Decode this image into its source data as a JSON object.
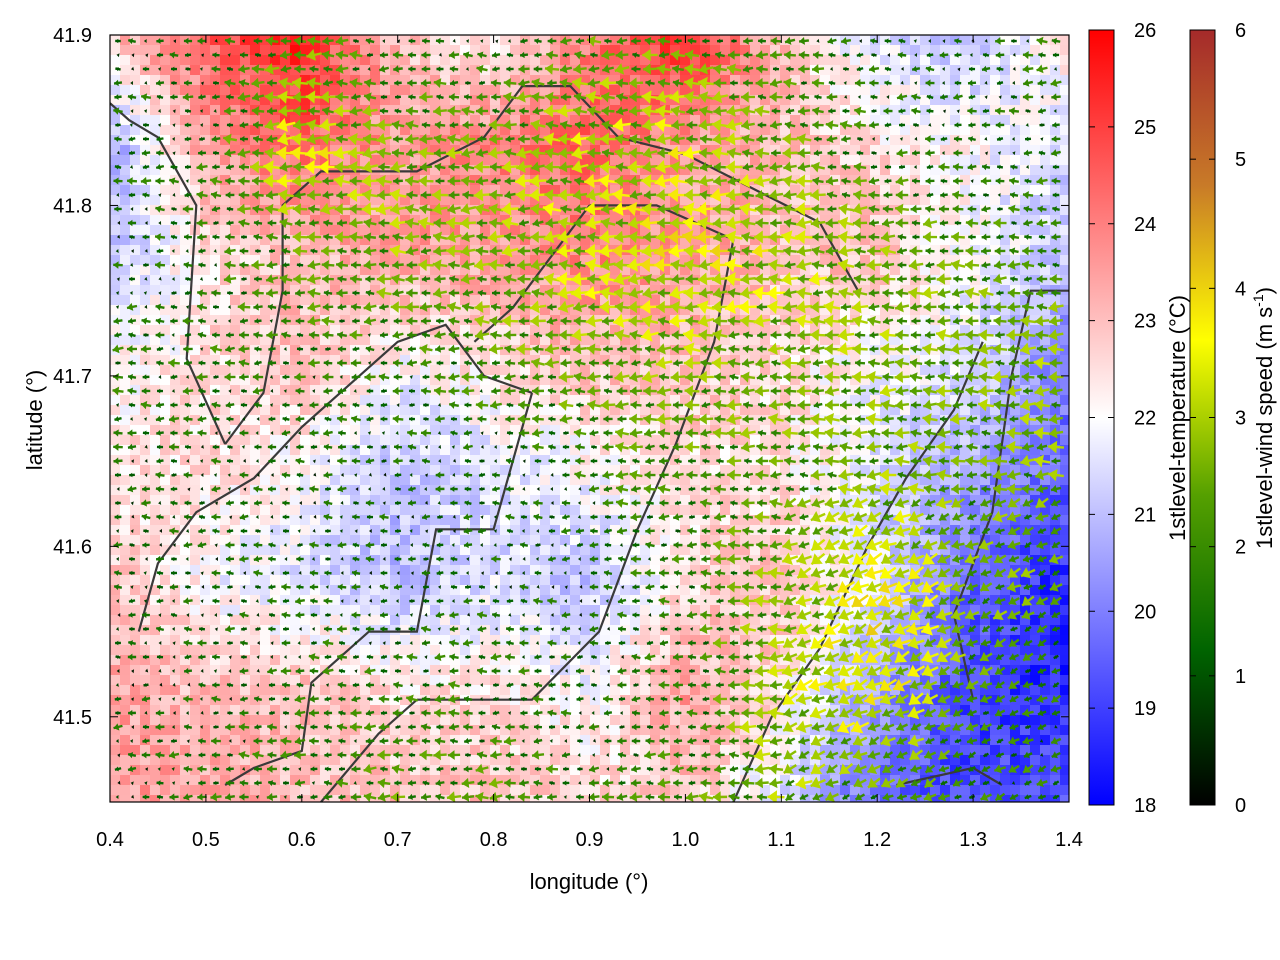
{
  "chart_data": {
    "type": "heatmap",
    "title": "",
    "xlabel": "longitude (°)",
    "ylabel": "latitude (°)",
    "xlim": [
      0.4,
      1.4
    ],
    "ylim": [
      41.45,
      41.9
    ],
    "x_ticks": [
      "0.4",
      "0.5",
      "0.6",
      "0.7",
      "0.8",
      "0.9",
      "1.0",
      "1.1",
      "1.2",
      "1.3",
      "1.4"
    ],
    "y_ticks": [
      "41.5",
      "41.6",
      "41.7",
      "41.8",
      "41.9"
    ],
    "grid": false,
    "temperature_colorbar": {
      "label": "1stlevel-temperature (°C)",
      "range": [
        18,
        26
      ],
      "ticks": [
        "18",
        "19",
        "20",
        "21",
        "22",
        "23",
        "24",
        "25",
        "26"
      ],
      "colors": [
        "#0000ff",
        "#ffffff",
        "#ff0000"
      ]
    },
    "wind_colorbar": {
      "label_main": "1stlevel-wind speed (m s",
      "label_sup": "-1",
      "label_end": ")",
      "range": [
        0,
        6
      ],
      "ticks": [
        "0",
        "1",
        "2",
        "3",
        "4",
        "5",
        "6"
      ],
      "colors": [
        "#000000",
        "#006400",
        "#55a000",
        "#ffff00",
        "#c87a28",
        "#a52a2a"
      ]
    },
    "temperature_field": [
      [
        23.0,
        24.5,
        25.5,
        23.0,
        22.0,
        24.0,
        25.5,
        23.0,
        21.5,
        21.0,
        22.5
      ],
      [
        20.5,
        23.5,
        24.5,
        23.5,
        24.0,
        24.5,
        23.5,
        23.0,
        22.5,
        22.0,
        21.5
      ],
      [
        21.0,
        22.5,
        23.0,
        23.5,
        23.5,
        24.0,
        23.5,
        23.0,
        23.0,
        22.0,
        21.0
      ],
      [
        22.0,
        22.5,
        23.0,
        22.0,
        22.5,
        23.0,
        23.0,
        22.5,
        22.0,
        21.5,
        20.0
      ],
      [
        22.5,
        22.5,
        22.0,
        21.0,
        21.5,
        22.0,
        22.5,
        22.5,
        21.5,
        20.5,
        19.5
      ],
      [
        23.0,
        22.0,
        21.5,
        21.0,
        21.5,
        21.0,
        22.5,
        23.0,
        21.5,
        19.5,
        18.5
      ],
      [
        23.5,
        23.0,
        23.0,
        22.5,
        22.5,
        22.0,
        23.5,
        22.5,
        20.5,
        19.0,
        18.5
      ],
      [
        23.5,
        23.5,
        23.0,
        23.0,
        23.0,
        22.5,
        23.0,
        21.5,
        19.5,
        19.0,
        19.5
      ]
    ],
    "wind_speed_field": [
      [
        1.0,
        1.0,
        2.0,
        1.0,
        1.0,
        2.0,
        2.0,
        1.5,
        1.0,
        1.0,
        1.5
      ],
      [
        1.0,
        1.5,
        3.5,
        2.5,
        2.5,
        3.0,
        3.0,
        2.5,
        1.5,
        1.0,
        1.5
      ],
      [
        1.0,
        1.5,
        2.0,
        2.5,
        2.5,
        3.0,
        3.5,
        3.0,
        2.5,
        2.0,
        2.0
      ],
      [
        1.5,
        1.5,
        1.5,
        1.5,
        2.0,
        2.5,
        2.5,
        2.5,
        2.5,
        2.5,
        2.5
      ],
      [
        1.0,
        1.0,
        1.0,
        1.0,
        1.0,
        1.5,
        2.0,
        2.0,
        2.5,
        2.0,
        2.5
      ],
      [
        1.0,
        1.0,
        1.0,
        1.0,
        1.0,
        1.0,
        1.5,
        2.5,
        3.5,
        2.5,
        2.0
      ],
      [
        1.0,
        1.0,
        1.5,
        1.5,
        1.5,
        1.0,
        1.5,
        3.0,
        3.5,
        2.0,
        1.5
      ],
      [
        1.0,
        1.5,
        1.5,
        2.0,
        2.0,
        1.5,
        2.0,
        2.5,
        2.0,
        1.5,
        1.5
      ]
    ],
    "contours": [
      [
        [
          0.52,
          41.66
        ],
        [
          0.48,
          41.71
        ],
        [
          0.49,
          41.8
        ],
        [
          0.45,
          41.84
        ],
        [
          0.42,
          41.85
        ],
        [
          0.4,
          41.86
        ]
      ],
      [
        [
          0.52,
          41.66
        ],
        [
          0.56,
          41.69
        ],
        [
          0.58,
          41.75
        ],
        [
          0.58,
          41.8
        ],
        [
          0.62,
          41.82
        ],
        [
          0.72,
          41.82
        ],
        [
          0.79,
          41.84
        ],
        [
          0.83,
          41.87
        ],
        [
          0.88,
          41.87
        ],
        [
          0.93,
          41.84
        ],
        [
          1.0,
          41.83
        ],
        [
          1.07,
          41.81
        ],
        [
          1.14,
          41.79
        ],
        [
          1.18,
          41.75
        ]
      ],
      [
        [
          0.43,
          41.55
        ],
        [
          0.45,
          41.59
        ],
        [
          0.49,
          41.62
        ],
        [
          0.55,
          41.64
        ],
        [
          0.6,
          41.67
        ],
        [
          0.66,
          41.7
        ],
        [
          0.7,
          41.72
        ],
        [
          0.75,
          41.73
        ],
        [
          0.79,
          41.7
        ],
        [
          0.84,
          41.69
        ]
      ],
      [
        [
          0.84,
          41.69
        ],
        [
          0.8,
          41.61
        ],
        [
          0.74,
          41.61
        ],
        [
          0.72,
          41.55
        ],
        [
          0.67,
          41.55
        ],
        [
          0.61,
          41.52
        ],
        [
          0.6,
          41.48
        ],
        [
          0.55,
          41.47
        ],
        [
          0.52,
          41.46
        ]
      ],
      [
        [
          0.72,
          41.51
        ],
        [
          0.84,
          41.51
        ],
        [
          0.91,
          41.55
        ],
        [
          0.95,
          41.61
        ],
        [
          0.99,
          41.66
        ],
        [
          1.03,
          41.72
        ],
        [
          1.05,
          41.78
        ],
        [
          0.97,
          41.8
        ],
        [
          0.9,
          41.8
        ]
      ],
      [
        [
          1.3,
          41.51
        ],
        [
          1.28,
          41.56
        ],
        [
          1.32,
          41.62
        ],
        [
          1.34,
          41.7
        ],
        [
          1.36,
          41.75
        ],
        [
          1.4,
          41.75
        ]
      ],
      [
        [
          1.05,
          41.45
        ],
        [
          1.09,
          41.5
        ],
        [
          1.14,
          41.54
        ],
        [
          1.19,
          41.6
        ],
        [
          1.23,
          41.64
        ],
        [
          1.28,
          41.68
        ],
        [
          1.31,
          41.72
        ]
      ],
      [
        [
          1.22,
          41.46
        ],
        [
          1.3,
          41.47
        ],
        [
          1.33,
          41.46
        ]
      ],
      [
        [
          0.62,
          41.45
        ],
        [
          0.68,
          41.49
        ],
        [
          0.72,
          41.51
        ]
      ],
      [
        [
          0.9,
          41.8
        ],
        [
          0.86,
          41.77
        ],
        [
          0.82,
          41.74
        ],
        [
          0.78,
          41.72
        ]
      ]
    ]
  }
}
